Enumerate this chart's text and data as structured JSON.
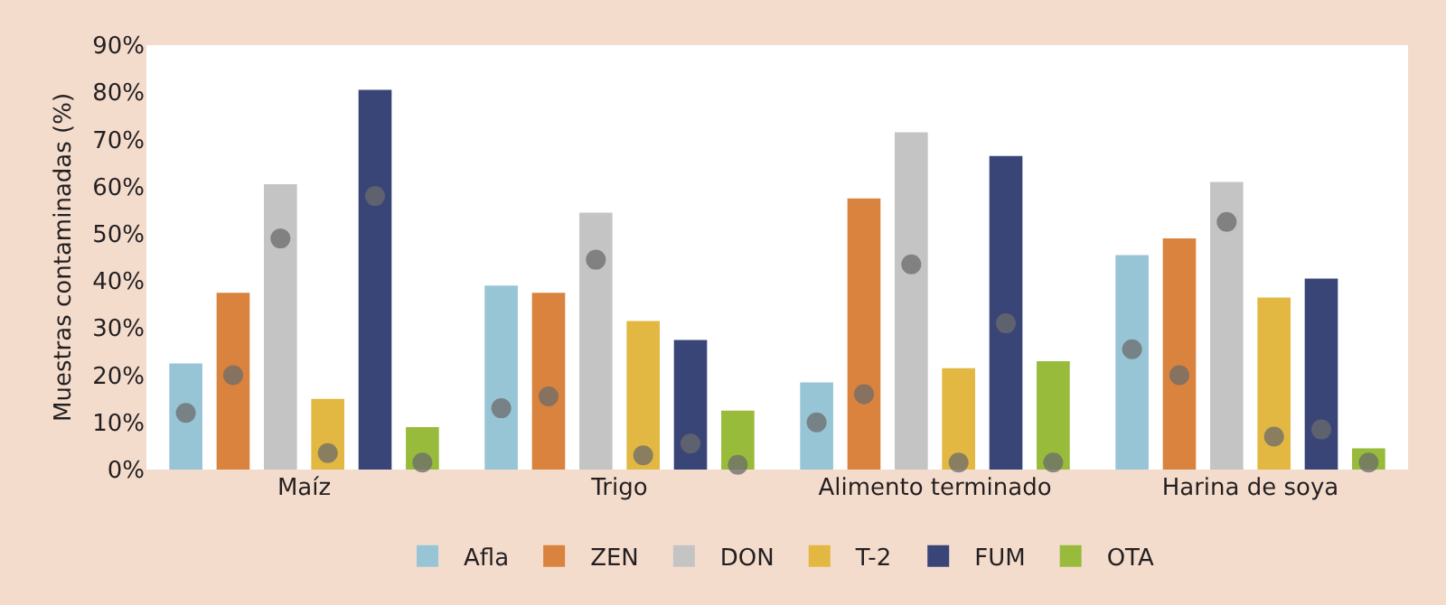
{
  "chart_data": {
    "type": "bar",
    "ylabel": "Muestras contaminadas (%)",
    "categories": [
      "Maíz",
      "Trigo",
      "Alimento terminado",
      "Harina de soya"
    ],
    "series": [
      {
        "name": "Afla",
        "color": "#97c5d6",
        "values": [
          22.5,
          39,
          18.5,
          45.5
        ]
      },
      {
        "name": "ZEN",
        "color": "#d9833e",
        "values": [
          37.5,
          37.5,
          57.5,
          49
        ]
      },
      {
        "name": "DON",
        "color": "#c5c4c4",
        "values": [
          60.5,
          54.5,
          71.5,
          61
        ]
      },
      {
        "name": "T-2",
        "color": "#e2b842",
        "values": [
          15,
          31.5,
          21.5,
          36.5
        ]
      },
      {
        "name": "FUM",
        "color": "#3a4577",
        "values": [
          80.5,
          27.5,
          66.5,
          40.5
        ]
      },
      {
        "name": "OTA",
        "color": "#98bb3b",
        "values": [
          9,
          12.5,
          23,
          4.5
        ]
      },
      {
        "type": "scatter",
        "color": "#6b6b6b",
        "values": [
          12,
          13,
          10,
          25.5
        ]
      },
      {
        "type": "scatter",
        "color": "#6b6b6b",
        "values": [
          20,
          15.5,
          16,
          20
        ]
      },
      {
        "type": "scatter",
        "color": "#6b6b6b",
        "values": [
          49,
          44.5,
          43.5,
          52.5
        ]
      },
      {
        "type": "scatter",
        "color": "#6b6b6b",
        "values": [
          3.5,
          3,
          1.5,
          7
        ]
      },
      {
        "type": "scatter",
        "color": "#6b6b6b",
        "values": [
          58,
          5.5,
          31,
          8.5
        ]
      },
      {
        "type": "scatter",
        "color": "#6b6b6b",
        "values": [
          1.5,
          1,
          1.5,
          1.5
        ]
      }
    ],
    "ylim": [
      0,
      90
    ],
    "yticks": [
      {
        "value": 0,
        "label": "0%"
      },
      {
        "value": 10,
        "label": "10%"
      },
      {
        "value": 20,
        "label": "20%"
      },
      {
        "value": 30,
        "label": "30%"
      },
      {
        "value": 40,
        "label": "40%"
      },
      {
        "value": 50,
        "label": "50%"
      },
      {
        "value": 60,
        "label": "60%"
      },
      {
        "value": 70,
        "label": "70%"
      },
      {
        "value": 80,
        "label": "80%"
      },
      {
        "value": 90,
        "label": "90%"
      }
    ],
    "grid": false,
    "legend": "bottom",
    "marker": "circle"
  }
}
